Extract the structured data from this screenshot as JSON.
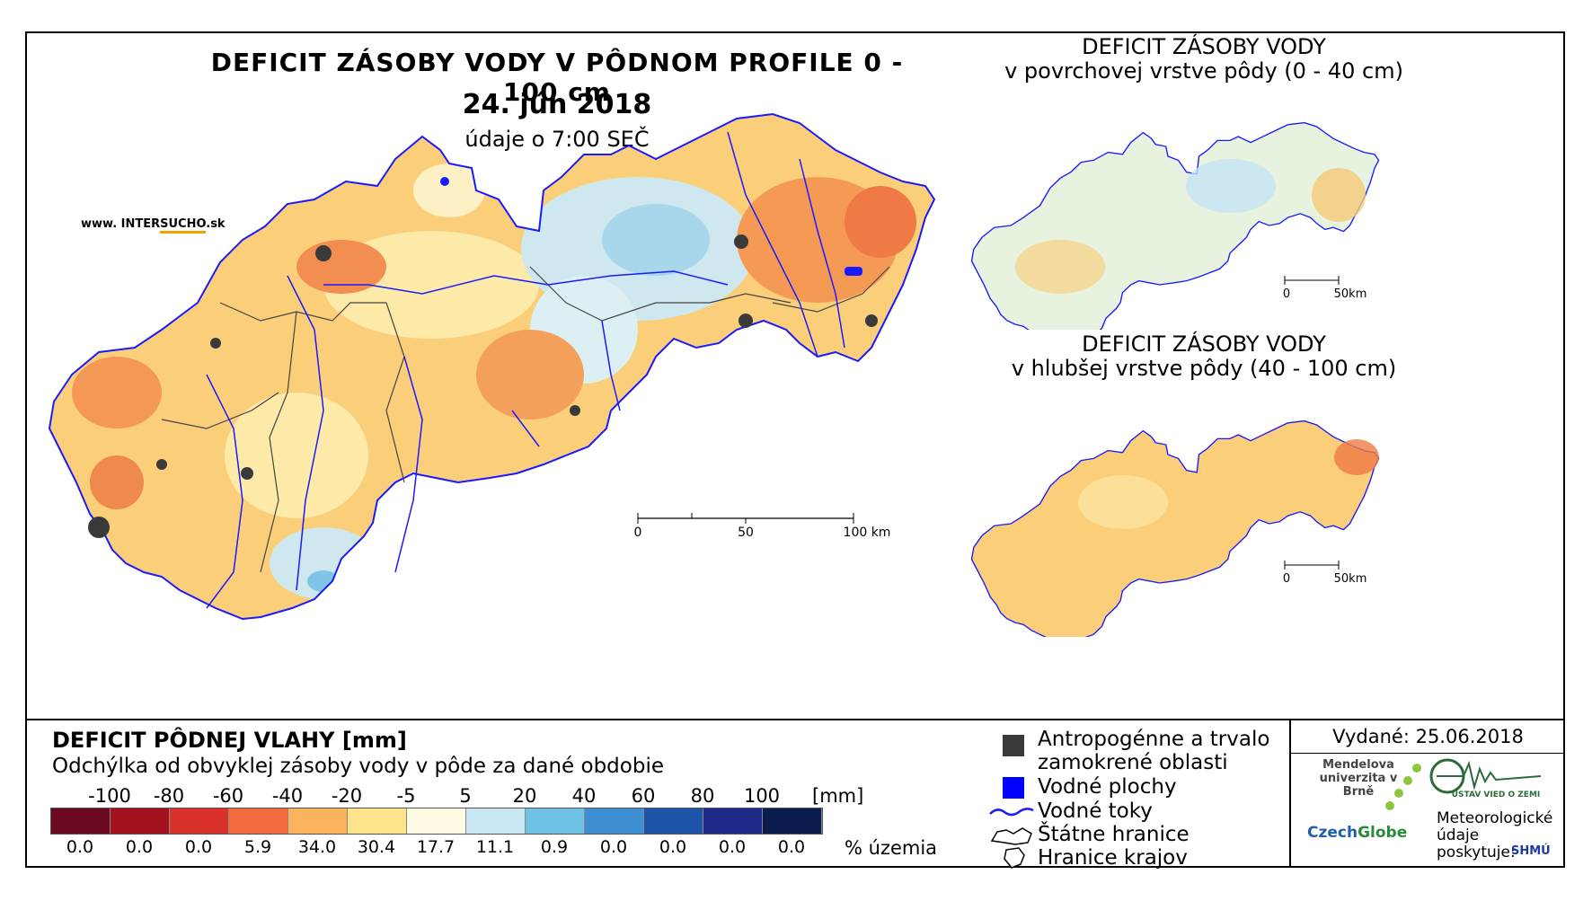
{
  "header": {
    "title": "DEFICIT ZÁSOBY VODY V PÔDNOM PROFILE 0 - 100 cm",
    "date": "24. jún 2018",
    "time_note": "údaje o 7:00 SEČ",
    "website_prefix": "www. INTER",
    "website_brand": "SUCHO",
    "website_suffix": ".sk"
  },
  "main_map": {
    "scale_labels": [
      "0",
      "50",
      "100 km"
    ]
  },
  "inset_top": {
    "title_line1": "DEFICIT ZÁSOBY VODY",
    "title_line2": "v povrchovej vrstve pôdy (0 - 40 cm)",
    "scale_labels": [
      "0",
      "50km"
    ]
  },
  "inset_bottom": {
    "title_line1": "DEFICIT ZÁSOBY VODY",
    "title_line2": "v hlubšej vrstve pôdy (40 - 100 cm)",
    "scale_labels": [
      "0",
      "50km"
    ]
  },
  "legend": {
    "title": "DEFICIT PÔDNEJ VLAHY [mm]",
    "subtitle": "Odchýlka od obvyklej zásoby vody v pôde za dané obdobie",
    "unit": "[mm]",
    "percent_label": "% územia",
    "breaks": [
      "-100",
      "-80",
      "-60",
      "-40",
      "-20",
      "-5",
      "5",
      "20",
      "40",
      "60",
      "80",
      "100"
    ],
    "colors": [
      "#6b0a1e",
      "#a5121f",
      "#d9322b",
      "#f26a3e",
      "#f9b35c",
      "#fde38a",
      "#fffbe3",
      "#c9e6f3",
      "#6fc2e4",
      "#3d8fd1",
      "#1e54a8",
      "#1e2a87",
      "#0b1d4f"
    ],
    "percents": [
      "0.0",
      "0.0",
      "0.0",
      "5.9",
      "34.0",
      "30.4",
      "17.7",
      "11.1",
      "0.9",
      "0.0",
      "0.0",
      "0.0",
      "0.0"
    ]
  },
  "symbols": {
    "anthropogenic": "Antropogénne a trvalo zamokrené oblasti",
    "water_bodies": "Vodné plochy",
    "streams": "Vodné toky",
    "state_border": "Štátne hranice",
    "regional_border": "Hranice krajov"
  },
  "credits": {
    "issued": "Vydané: 25.06.2018",
    "mendel": "Mendelova univerzita v Brně",
    "czechglobe_a": "Czech",
    "czechglobe_b": "Globe",
    "ustav": "ÚSTAV VIED O ZEMI",
    "meteo": "Meteorologické údaje poskytuje:",
    "shmu": "SHMÚ"
  }
}
